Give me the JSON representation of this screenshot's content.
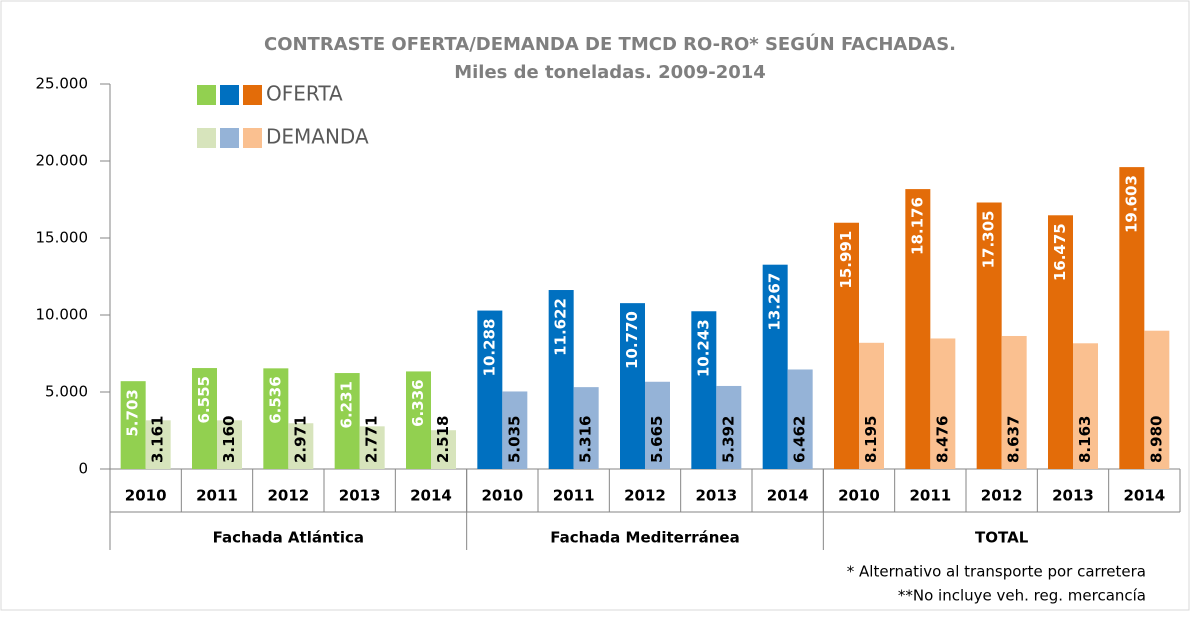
{
  "chart_data": {
    "type": "bar",
    "title": "CONTRASTE OFERTA/DEMANDA DE TMCD RO-RO* SEGÚN FACHADAS.",
    "subtitle": "Miles de toneladas. 2009-2014",
    "categories": [
      "2010",
      "2011",
      "2012",
      "2013",
      "2014",
      "2010",
      "2011",
      "2012",
      "2013",
      "2014",
      "2010",
      "2011",
      "2012",
      "2013",
      "2014"
    ],
    "groups": [
      {
        "name": "Fachada Atlántica",
        "count": 5
      },
      {
        "name": "Fachada Mediterránea",
        "count": 5
      },
      {
        "name": "TOTAL",
        "count": 5
      }
    ],
    "series": [
      {
        "name": "OFERTA",
        "colors": [
          "#92d050",
          "#0070c0",
          "#e36c09"
        ],
        "values": [
          5703,
          6555,
          6536,
          6231,
          6336,
          10288,
          11622,
          10770,
          10243,
          13267,
          15991,
          18176,
          17305,
          16475,
          19603
        ],
        "value_labels": [
          "5.703",
          "6.555",
          "6.536",
          "6.231",
          "6.336",
          "10.288",
          "11.622",
          "10.770",
          "10.243",
          "13.267",
          "15.991",
          "18.176",
          "17.305",
          "16.475",
          "19.603"
        ]
      },
      {
        "name": "DEMANDA",
        "colors": [
          "#d7e4bc",
          "#95b3d7",
          "#fac090"
        ],
        "values": [
          3161,
          3160,
          2971,
          2771,
          2518,
          5035,
          5316,
          5665,
          5392,
          6462,
          8195,
          8476,
          8637,
          8163,
          8980
        ],
        "value_labels": [
          "3.161",
          "3.160",
          "2.971",
          "2.771",
          "2.518",
          "5.035",
          "5.316",
          "5.665",
          "5.392",
          "6.462",
          "8.195",
          "8.476",
          "8.637",
          "8.163",
          "8.980"
        ]
      }
    ],
    "ylim": [
      0,
      25000
    ],
    "yticks": [
      0,
      {
        "value": 5000,
        "label": "5.000"
      },
      {
        "value": 10000,
        "label": "10.000"
      },
      {
        "value": 15000,
        "label": "15.000"
      },
      {
        "value": 20000,
        "label": "20.000"
      },
      {
        "value": 25000,
        "label": "25.000"
      }
    ],
    "notes": [
      "*  Alternativo al transporte por carretera",
      "**No incluye veh. reg. mercancía"
    ]
  }
}
